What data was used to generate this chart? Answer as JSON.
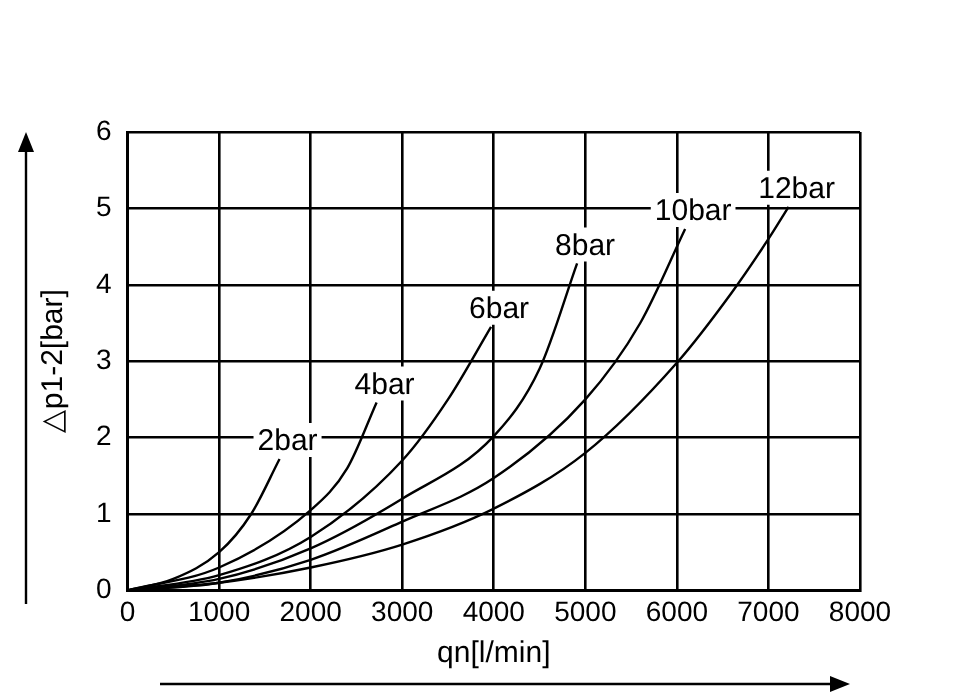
{
  "chart_data": {
    "type": "line",
    "xlabel": "qn[l/min]",
    "ylabel": "△p1-2[bar]",
    "xlim": [
      0,
      8000
    ],
    "xticks": [
      0,
      1000,
      2000,
      3000,
      4000,
      5000,
      6000,
      7000,
      8000
    ],
    "ylim": [
      0,
      6
    ],
    "yticks": [
      0,
      1,
      2,
      3,
      4,
      5,
      6
    ],
    "grid": true,
    "legend": false,
    "marker": "none",
    "line_style": "solid",
    "series": [
      {
        "name": "2bar",
        "color": "#000000",
        "x": [
          0,
          500,
          1000,
          1350,
          1660
        ],
        "values": [
          0,
          0.15,
          0.5,
          1,
          1.72
        ]
      },
      {
        "name": "4bar",
        "color": "#000000",
        "x": [
          0,
          1000,
          2000,
          2400,
          2720
        ],
        "values": [
          0,
          0.3,
          1.05,
          1.6,
          2.46
        ]
      },
      {
        "name": "6bar",
        "color": "#000000",
        "x": [
          0,
          1000,
          2000,
          3000,
          3500,
          3970
        ],
        "values": [
          0,
          0.2,
          0.7,
          1.7,
          2.5,
          3.45
        ]
      },
      {
        "name": "8bar",
        "color": "#000000",
        "x": [
          0,
          1000,
          2000,
          3000,
          4000,
          4500,
          4910
        ],
        "values": [
          0,
          0.15,
          0.55,
          1.2,
          2.02,
          2.9,
          4.28
        ]
      },
      {
        "name": "10bar",
        "color": "#000000",
        "x": [
          0,
          1000,
          2000,
          3000,
          4000,
          5000,
          5600,
          6090
        ],
        "values": [
          0,
          0.1,
          0.4,
          0.9,
          1.47,
          2.5,
          3.5,
          4.73
        ]
      },
      {
        "name": "12bar",
        "color": "#000000",
        "x": [
          0,
          1000,
          2000,
          3000,
          4000,
          5000,
          6000,
          6600,
          7000,
          7220
        ],
        "values": [
          0,
          0.1,
          0.3,
          0.6,
          1.07,
          1.8,
          2.98,
          3.9,
          4.6,
          5.02
        ]
      }
    ]
  }
}
